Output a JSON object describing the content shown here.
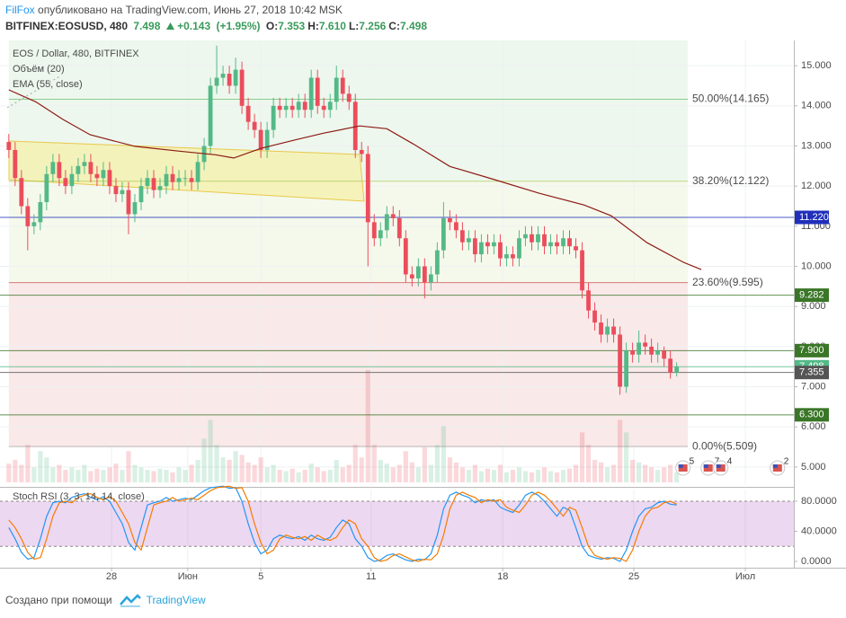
{
  "header": {
    "author": "FilFox",
    "published": "опубликовано на TradingView.com, Июнь 27, 2018 10:42 MSK",
    "symbol": "BITFINEX:EOSUSD, 480",
    "last": 7.498,
    "change": "+0.143",
    "change_pct": "(+1.95%)",
    "ohlc": [
      {
        "label": "O:",
        "value": 7.353
      },
      {
        "label": "H:",
        "value": 7.61,
        "text": "7.610"
      },
      {
        "label": "L:",
        "value": 7.256
      },
      {
        "label": "C:",
        "value": 7.498
      }
    ]
  },
  "footer": {
    "credit": "Создано при помощи",
    "brand": "TradingView"
  },
  "chart_data": [
    {
      "type": "candlestick",
      "title": "EOS / Dollar, 480, BITFINEX",
      "up_color": "#53b987",
      "down_color": "#eb4d5c",
      "grid": true,
      "xlim": [
        -1.4,
        124.6
      ],
      "ylim": [
        4.55,
        15.63
      ],
      "xticks": [
        {
          "value": 16.3,
          "label": "28"
        },
        {
          "value": 28.4,
          "label": "Июн"
        },
        {
          "value": 40.0,
          "label": "5"
        },
        {
          "value": 57.5,
          "label": "11"
        },
        {
          "value": 78.4,
          "label": "18"
        },
        {
          "value": 99.2,
          "label": "25"
        },
        {
          "value": 116.9,
          "label": "Июл"
        }
      ],
      "yticks": [
        {
          "value": 5,
          "label": "5.000"
        },
        {
          "value": 6,
          "label": "6.000"
        },
        {
          "value": 7,
          "label": "7.000"
        },
        {
          "value": 8,
          "label": "8.000"
        },
        {
          "value": 9,
          "label": "9.000"
        },
        {
          "value": 10,
          "label": "10.000"
        },
        {
          "value": 11,
          "label": "11.000"
        },
        {
          "value": 12,
          "label": "12.000"
        },
        {
          "value": 13,
          "label": "13.000"
        },
        {
          "value": 14,
          "label": "14.000"
        },
        {
          "value": 15,
          "label": "15.000"
        }
      ],
      "open": [
        13.1,
        12.9,
        12.2,
        11.5,
        11.0,
        11.1,
        11.6,
        12.3,
        12.6,
        12.2,
        12.0,
        12.3,
        12.5,
        12.6,
        12.3,
        12.2,
        12.4,
        12.0,
        11.8,
        11.9,
        11.3,
        11.6,
        12.0,
        12.2,
        11.9,
        12.0,
        12.3,
        12.1,
        12.2,
        12.2,
        12.1,
        12.6,
        13.0,
        14.5,
        14.7,
        14.8,
        14.5,
        14.9,
        14.0,
        13.6,
        13.4,
        12.9,
        13.4,
        14.0,
        13.9,
        14.0,
        13.9,
        14.1,
        13.9,
        14.7,
        14.0,
        13.9,
        14.1,
        14.7,
        14.3,
        14.1,
        12.9,
        12.8,
        11.1,
        10.7,
        10.9,
        11.3,
        11.2,
        10.7,
        9.8,
        9.7,
        10.0,
        9.6,
        9.8,
        10.4,
        11.2,
        11.1,
        10.9,
        10.6,
        10.7,
        10.3,
        10.6,
        10.5,
        10.6,
        10.2,
        10.3,
        10.2,
        10.7,
        10.8,
        10.6,
        10.8,
        10.5,
        10.6,
        10.5,
        10.7,
        10.5,
        10.4,
        9.4,
        8.9,
        8.6,
        8.3,
        8.5,
        8.3,
        7.0,
        7.9,
        7.8,
        8.1,
        8.0,
        7.8,
        7.9,
        7.7,
        7.353
      ],
      "high": [
        13.3,
        13.1,
        12.4,
        11.7,
        11.3,
        11.8,
        12.5,
        12.8,
        12.8,
        12.4,
        12.5,
        12.7,
        12.8,
        12.8,
        12.5,
        12.6,
        12.6,
        12.2,
        12.1,
        12.1,
        11.8,
        12.2,
        12.4,
        12.4,
        12.2,
        12.5,
        12.5,
        12.4,
        12.4,
        12.4,
        12.8,
        13.2,
        14.7,
        15.5,
        15.0,
        15.0,
        15.2,
        15.1,
        14.2,
        13.8,
        13.6,
        13.6,
        14.2,
        14.2,
        14.2,
        14.2,
        14.3,
        14.3,
        14.9,
        14.9,
        14.2,
        14.3,
        15.0,
        14.9,
        14.5,
        14.3,
        13.1,
        13.0,
        11.3,
        11.1,
        11.5,
        11.5,
        11.4,
        10.9,
        10.0,
        10.2,
        10.2,
        10.0,
        10.6,
        11.6,
        11.4,
        11.3,
        11.1,
        10.9,
        10.9,
        10.8,
        10.8,
        10.8,
        10.8,
        10.5,
        10.5,
        10.9,
        11.0,
        11.0,
        11.0,
        11.0,
        10.8,
        10.8,
        10.9,
        10.9,
        10.7,
        10.6,
        9.6,
        9.1,
        8.8,
        8.7,
        8.7,
        8.5,
        8.1,
        8.1,
        8.4,
        8.3,
        8.2,
        8.1,
        8.0,
        7.9,
        7.61
      ],
      "low": [
        12.7,
        12.0,
        11.3,
        10.4,
        10.8,
        10.9,
        11.4,
        12.1,
        12.0,
        11.8,
        11.8,
        12.1,
        12.3,
        12.1,
        12.0,
        12.0,
        11.8,
        11.6,
        11.6,
        10.8,
        11.1,
        11.4,
        11.8,
        11.7,
        11.7,
        11.8,
        11.9,
        11.9,
        12.0,
        11.9,
        11.9,
        12.4,
        12.8,
        14.3,
        14.5,
        14.3,
        14.3,
        13.8,
        13.4,
        13.2,
        12.7,
        12.7,
        13.2,
        13.7,
        13.7,
        13.7,
        13.7,
        13.7,
        13.7,
        13.8,
        13.7,
        13.7,
        13.9,
        14.1,
        13.9,
        12.7,
        12.6,
        10.0,
        10.5,
        10.5,
        10.7,
        11.0,
        10.5,
        9.6,
        9.5,
        9.5,
        9.2,
        9.4,
        9.6,
        10.2,
        10.9,
        10.7,
        10.4,
        10.4,
        10.1,
        10.1,
        10.3,
        10.3,
        10.0,
        10.0,
        10.0,
        10.0,
        10.5,
        10.4,
        10.4,
        10.3,
        10.3,
        10.3,
        10.3,
        10.3,
        10.2,
        9.2,
        8.7,
        8.4,
        8.1,
        8.1,
        8.1,
        6.8,
        6.85,
        7.6,
        7.6,
        7.8,
        7.6,
        7.6,
        7.5,
        7.2,
        7.256
      ],
      "close": [
        12.9,
        12.2,
        11.5,
        11.0,
        11.1,
        11.6,
        12.3,
        12.6,
        12.2,
        12.0,
        12.3,
        12.5,
        12.6,
        12.3,
        12.2,
        12.4,
        12.0,
        11.8,
        11.9,
        11.3,
        11.6,
        12.0,
        12.2,
        11.9,
        12.0,
        12.3,
        12.1,
        12.2,
        12.2,
        12.1,
        12.6,
        13.0,
        14.5,
        14.7,
        14.8,
        14.5,
        14.9,
        14.0,
        13.6,
        13.4,
        12.9,
        13.4,
        14.0,
        13.9,
        14.0,
        13.9,
        14.1,
        13.9,
        14.7,
        14.0,
        13.9,
        14.1,
        14.7,
        14.3,
        14.1,
        12.9,
        12.8,
        11.1,
        10.7,
        10.9,
        11.3,
        11.2,
        10.7,
        9.8,
        9.7,
        10.0,
        9.6,
        9.8,
        10.4,
        11.2,
        11.1,
        10.9,
        10.6,
        10.7,
        10.3,
        10.6,
        10.5,
        10.6,
        10.2,
        10.3,
        10.2,
        10.7,
        10.8,
        10.6,
        10.8,
        10.5,
        10.6,
        10.5,
        10.7,
        10.5,
        10.4,
        9.4,
        8.9,
        8.6,
        8.3,
        8.5,
        8.3,
        7.0,
        7.9,
        7.8,
        8.1,
        8.0,
        7.8,
        7.9,
        7.7,
        7.353,
        7.498
      ],
      "ema": {
        "name": "EMA (55, close)",
        "color": "#8e1b14",
        "x": [
          0,
          4.3,
          8.6,
          12.9,
          20,
          27.1,
          32.8,
          35.7,
          40,
          45.7,
          50,
          55.7,
          60,
          64.2,
          70,
          77.1,
          84.2,
          91.3,
          95.6,
          101.3,
          107.1,
          109.9
        ],
        "values": [
          14.4,
          14.1,
          13.66,
          13.28,
          12.99,
          12.87,
          12.78,
          12.7,
          12.94,
          13.16,
          13.32,
          13.5,
          13.43,
          13.05,
          12.49,
          12.16,
          11.82,
          11.53,
          11.26,
          10.59,
          10.1,
          9.92
        ]
      },
      "volume": {
        "name": "Объём (20)",
        "ylim": [
          0,
          100
        ],
        "values": [
          15,
          18,
          14,
          30,
          12,
          25,
          20,
          12,
          14,
          10,
          12,
          10,
          14,
          9,
          11,
          10,
          12,
          15,
          10,
          25,
          14,
          12,
          10,
          9,
          11,
          10,
          8,
          12,
          10,
          14,
          18,
          35,
          50,
          30,
          20,
          18,
          25,
          22,
          16,
          14,
          20,
          12,
          14,
          10,
          9,
          11,
          8,
          10,
          15,
          12,
          9,
          10,
          18,
          12,
          14,
          30,
          20,
          90,
          30,
          18,
          15,
          12,
          14,
          25,
          16,
          12,
          28,
          14,
          30,
          45,
          20,
          16,
          12,
          10,
          14,
          9,
          11,
          10,
          14,
          8,
          10,
          12,
          9,
          8,
          10,
          12,
          9,
          8,
          10,
          11,
          14,
          40,
          30,
          18,
          16,
          12,
          14,
          50,
          40,
          18,
          16,
          14,
          12,
          10,
          12,
          14,
          8
        ]
      },
      "fib": [
        {
          "value": 14.165,
          "label": "50.00%(14.165)",
          "color": "#4caf50"
        },
        {
          "value": 12.122,
          "label": "38.20%(12.122)",
          "color": "#9cc33a"
        },
        {
          "value": 9.595,
          "label": "23.60%(9.595)",
          "color": "#c62828"
        },
        {
          "value": 5.509,
          "label": "0.00%(5.509)",
          "color": "#8c8c8c"
        }
      ],
      "levels": [
        {
          "price": {
            "value": 11.22,
            "label": "11.220"
          },
          "color": "#1f2fbb"
        },
        {
          "price": 9.282,
          "color": "#3a7627"
        },
        {
          "price": {
            "value": 7.9,
            "label": "7.900"
          },
          "color": "#3a7627"
        },
        {
          "price": 7.498,
          "color": "#53b987"
        },
        {
          "price": 7.355,
          "color": "#555555"
        },
        {
          "price": {
            "value": 6.3,
            "label": "6.300"
          },
          "color": "#3a7627"
        }
      ],
      "events": [
        {
          "x": 107,
          "count": 5
        },
        {
          "x": 111,
          "count": 7
        },
        {
          "x": 113,
          "count": 4
        },
        {
          "x": 122,
          "count": 2
        }
      ]
    },
    {
      "type": "line",
      "title": "Stoch RSI (3, 3, 14, 14, close)",
      "ylim": [
        -8.4,
        95.5
      ],
      "band": [
        20,
        80
      ],
      "band_color": "#9c27b0",
      "yticks": [
        {
          "value": 80,
          "label": "80.0000"
        },
        {
          "value": 40,
          "label": "40.0000"
        },
        {
          "value": 0,
          "label": "0.0000"
        }
      ],
      "series": [
        {
          "color": "#2196f3",
          "values": [
            45,
            30,
            12,
            3,
            5,
            30,
            60,
            78,
            80,
            78,
            85,
            88,
            90,
            85,
            82,
            86,
            80,
            65,
            50,
            25,
            15,
            45,
            75,
            78,
            80,
            85,
            80,
            82,
            84,
            82,
            88,
            94,
            98,
            99,
            100,
            97,
            98,
            80,
            50,
            25,
            10,
            15,
            30,
            35,
            32,
            30,
            33,
            28,
            35,
            30,
            28,
            32,
            45,
            55,
            50,
            30,
            20,
            5,
            0,
            2,
            8,
            10,
            6,
            2,
            0,
            3,
            2,
            10,
            35,
            70,
            88,
            92,
            88,
            85,
            78,
            82,
            80,
            82,
            72,
            68,
            65,
            75,
            88,
            92,
            88,
            80,
            70,
            60,
            72,
            68,
            45,
            20,
            8,
            5,
            3,
            5,
            4,
            0,
            15,
            40,
            60,
            70,
            72,
            78,
            80,
            76,
            75
          ]
        },
        {
          "color": "#f57c00",
          "values": [
            55,
            45,
            30,
            12,
            3,
            5,
            30,
            60,
            78,
            80,
            78,
            85,
            88,
            90,
            85,
            82,
            86,
            80,
            65,
            50,
            25,
            15,
            45,
            75,
            78,
            80,
            85,
            80,
            82,
            84,
            82,
            88,
            94,
            98,
            99,
            100,
            97,
            98,
            80,
            50,
            25,
            10,
            15,
            30,
            35,
            32,
            30,
            33,
            28,
            35,
            30,
            28,
            32,
            45,
            55,
            50,
            30,
            20,
            5,
            0,
            2,
            8,
            10,
            6,
            2,
            0,
            3,
            2,
            10,
            35,
            70,
            88,
            92,
            88,
            85,
            78,
            82,
            80,
            82,
            72,
            68,
            65,
            75,
            88,
            92,
            88,
            80,
            70,
            60,
            72,
            68,
            45,
            20,
            8,
            5,
            3,
            5,
            4,
            0,
            15,
            40,
            60,
            70,
            72,
            78,
            80,
            76
          ]
        }
      ]
    }
  ]
}
